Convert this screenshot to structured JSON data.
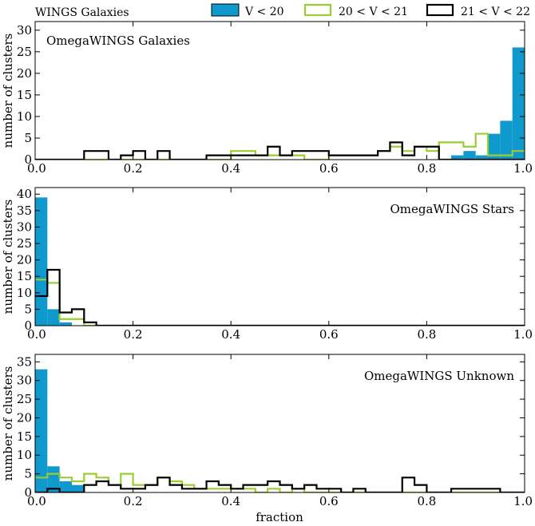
{
  "figure_title": "WINGS Galaxies",
  "xlabel": "fraction",
  "chart_data": [
    {
      "type": "histogram",
      "annotation": "OmegaWINGS Galaxies",
      "ylabel": "number of clusters",
      "xlim": [
        0.0,
        1.0
      ],
      "ylim": [
        0,
        32
      ],
      "xticks": [
        "0.0",
        "0.2",
        "0.4",
        "0.6",
        "0.8",
        "1.0"
      ],
      "yticks": [
        "0",
        "5",
        "10",
        "15",
        "20",
        "25",
        "30"
      ],
      "bin_width": 0.025,
      "series": [
        {
          "name": "V < 20",
          "style": "filled",
          "color": "#0f99cc",
          "values": [
            0,
            0,
            0,
            0,
            0,
            0,
            0,
            0,
            0,
            0,
            0,
            0,
            0,
            0,
            0,
            0,
            0,
            0,
            0,
            0,
            0,
            0,
            0,
            0,
            0,
            0,
            0,
            0,
            0,
            0,
            0,
            0,
            0,
            0,
            1,
            2,
            1,
            6,
            9,
            26
          ]
        },
        {
          "name": "20 < V < 21",
          "style": "step",
          "color": "#9acd32",
          "values": [
            0,
            0,
            0,
            0,
            0,
            0,
            0,
            0,
            0,
            0,
            0,
            0,
            0,
            0,
            0,
            0,
            2,
            2,
            1,
            1,
            1,
            1,
            0,
            0,
            1,
            1,
            1,
            1,
            2,
            3,
            2,
            3,
            2,
            4,
            4,
            3,
            6,
            1,
            1,
            2
          ]
        },
        {
          "name": "21 < V < 22",
          "style": "step",
          "color": "#000000",
          "values": [
            0,
            0,
            0,
            0,
            2,
            2,
            0,
            1,
            2,
            0,
            2,
            0,
            0,
            0,
            1,
            1,
            1,
            1,
            1,
            3,
            1,
            2,
            2,
            2,
            1,
            1,
            1,
            1,
            2,
            4,
            1,
            3,
            3,
            0,
            0,
            0,
            0,
            0,
            0,
            0
          ]
        }
      ]
    },
    {
      "type": "histogram",
      "annotation": "OmegaWINGS Stars",
      "ylabel": "number of clusters",
      "xlim": [
        0.0,
        1.0
      ],
      "ylim": [
        0,
        42
      ],
      "xticks": [
        "0.0",
        "0.2",
        "0.4",
        "0.6",
        "0.8",
        "1.0"
      ],
      "yticks": [
        "0",
        "5",
        "10",
        "15",
        "20",
        "25",
        "30",
        "35",
        "40"
      ],
      "bin_width": 0.025,
      "series": [
        {
          "name": "V < 20",
          "style": "filled",
          "color": "#0f99cc",
          "values": [
            39,
            5,
            1,
            0,
            0,
            0,
            0,
            0,
            0,
            0,
            0,
            0,
            0,
            0,
            0,
            0,
            0,
            0,
            0,
            0,
            0,
            0,
            0,
            0,
            0,
            0,
            0,
            0,
            0,
            0,
            0,
            0,
            0,
            0,
            0,
            0,
            0,
            0,
            0,
            0
          ]
        },
        {
          "name": "20 < V < 21",
          "style": "step",
          "color": "#9acd32",
          "values": [
            14,
            13,
            2,
            2,
            0,
            0,
            0,
            0,
            0,
            0,
            0,
            0,
            0,
            0,
            0,
            0,
            0,
            0,
            0,
            0,
            0,
            0,
            0,
            0,
            0,
            0,
            0,
            0,
            0,
            0,
            0,
            0,
            0,
            0,
            0,
            0,
            0,
            0,
            0,
            0
          ]
        },
        {
          "name": "21 < V < 22",
          "style": "step",
          "color": "#000000",
          "values": [
            9,
            17,
            4,
            5,
            1,
            0,
            0,
            0,
            0,
            0,
            0,
            0,
            0,
            0,
            0,
            0,
            0,
            0,
            0,
            0,
            0,
            0,
            0,
            0,
            0,
            0,
            0,
            0,
            0,
            0,
            0,
            0,
            0,
            0,
            0,
            0,
            0,
            0,
            0,
            0
          ]
        }
      ]
    },
    {
      "type": "histogram",
      "annotation": "OmegaWINGS Unknown",
      "ylabel": "number of clusters",
      "xlim": [
        0.0,
        1.0
      ],
      "ylim": [
        0,
        37
      ],
      "xticks": [
        "0.0",
        "0.2",
        "0.4",
        "0.6",
        "0.8",
        "1.0"
      ],
      "yticks": [
        "0",
        "5",
        "10",
        "15",
        "20",
        "25",
        "30",
        "35"
      ],
      "bin_width": 0.025,
      "series": [
        {
          "name": "V < 20",
          "style": "filled",
          "color": "#0f99cc",
          "values": [
            33,
            7,
            3,
            2,
            0,
            0,
            0,
            0,
            0,
            0,
            0,
            0,
            0,
            0,
            0,
            0,
            0,
            0,
            0,
            0,
            0,
            0,
            0,
            0,
            0,
            0,
            0,
            0,
            0,
            0,
            0,
            0,
            0,
            0,
            0,
            0,
            0,
            0,
            0,
            0
          ]
        },
        {
          "name": "20 < V < 21",
          "style": "step",
          "color": "#9acd32",
          "values": [
            4,
            5,
            4,
            3,
            5,
            4,
            2,
            5,
            2,
            2,
            4,
            3,
            2,
            1,
            1,
            1,
            1,
            1,
            0,
            1,
            0,
            1,
            0,
            0,
            0,
            0,
            0,
            0,
            0,
            0,
            0,
            0,
            0,
            0,
            0,
            0,
            0,
            0,
            0,
            0
          ]
        },
        {
          "name": "21 < V < 22",
          "style": "step",
          "color": "#000000",
          "values": [
            0,
            1,
            0,
            0,
            2,
            3,
            2,
            1,
            1,
            2,
            4,
            2,
            1,
            1,
            3,
            2,
            1,
            2,
            2,
            3,
            2,
            1,
            2,
            1,
            1,
            0,
            1,
            0,
            0,
            0,
            4,
            2,
            0,
            0,
            1,
            1,
            1,
            1,
            0,
            0
          ]
        }
      ]
    }
  ]
}
